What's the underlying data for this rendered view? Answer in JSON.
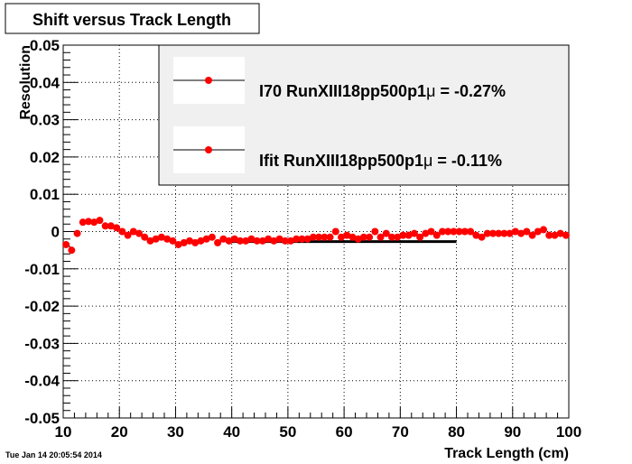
{
  "chart_data": {
    "type": "scatter",
    "title": "Shift versus Track Length",
    "xlabel": "Track Length (cm)",
    "ylabel": "Resolution",
    "xlim": [
      10,
      100
    ],
    "ylim": [
      -0.05,
      0.05
    ],
    "x_ticks": [
      "10",
      "20",
      "30",
      "40",
      "50",
      "60",
      "70",
      "80",
      "90",
      "100"
    ],
    "y_ticks": [
      "-0.05",
      "-0.04",
      "-0.03",
      "-0.02",
      "-0.01",
      "0",
      "0.01",
      "0.02",
      "0.03",
      "0.04",
      "0.05"
    ],
    "grid": true,
    "legend_position": "top-right",
    "timestamp": "Tue Jan 14 20:05:54 2014",
    "fit_line": {
      "x": [
        40,
        80
      ],
      "y": [
        -0.0027,
        -0.0027
      ],
      "color": "#000000"
    },
    "series": [
      {
        "name": "I70   RunXIII18pp500p1",
        "legend_suffix": " = -0.27%",
        "mu": "μ",
        "color": "#ff0000",
        "x": [
          10.5,
          11.5,
          12.5,
          13.5,
          14.5,
          15.5,
          16.5,
          17.5,
          18.5,
          19.5,
          20.5,
          21.5,
          22.5,
          23.5,
          24.5,
          25.5,
          26.5,
          27.5,
          28.5,
          29.5,
          30.5,
          31.5,
          32.5,
          33.5,
          34.5,
          35.5,
          36.5,
          37.5,
          38.5,
          39.5,
          40.5,
          41.5,
          42.5,
          43.5,
          44.5,
          45.5,
          46.5,
          47.5,
          48.5,
          49.5,
          50.5,
          51.5,
          52.5,
          53.5,
          54.5,
          55.5,
          56.5,
          57.5,
          58.5,
          59.5,
          60.5,
          61.5,
          62.5,
          63.5,
          64.5,
          65.5,
          66.5,
          67.5,
          68.5,
          69.5,
          70.5,
          71.5,
          72.5,
          73.5,
          74.5,
          75.5,
          76.5,
          77.5,
          78.5,
          79.5,
          80.5,
          81.5,
          82.5,
          83.5,
          84.5,
          85.5,
          86.5,
          87.5,
          88.5,
          89.5,
          90.5,
          91.5,
          92.5,
          93.5,
          94.5,
          95.5,
          96.5,
          97.5,
          98.5,
          99.5
        ],
        "y": [
          -0.0035,
          -0.005,
          -0.0005,
          0.0025,
          0.0027,
          0.0025,
          0.003,
          0.0015,
          0.0015,
          0.001,
          0.0,
          -0.001,
          0.0,
          -0.0005,
          -0.0015,
          -0.0025,
          -0.002,
          -0.0015,
          -0.002,
          -0.0025,
          -0.0035,
          -0.003,
          -0.0025,
          -0.003,
          -0.0025,
          -0.002,
          -0.0015,
          -0.003,
          -0.002,
          -0.0025,
          -0.002,
          -0.0025,
          -0.0025,
          -0.002,
          -0.0025,
          -0.0025,
          -0.002,
          -0.0025,
          -0.002,
          -0.0025,
          -0.0025,
          -0.002,
          -0.002,
          -0.002,
          -0.0015,
          -0.0015,
          -0.0015,
          -0.0015,
          0.0,
          -0.0015,
          -0.001,
          -0.0015,
          -0.002,
          -0.0015,
          -0.0015,
          0.0,
          -0.0015,
          -0.0005,
          -0.0015,
          -0.0015,
          -0.001,
          -0.001,
          -0.0005,
          -0.0015,
          -0.0005,
          0.0,
          -0.001,
          0.0,
          0.0,
          0.0,
          0.0,
          0.0,
          0.0,
          -0.001,
          -0.0015,
          -0.0005,
          -0.0005,
          -0.0005,
          -0.0005,
          -0.0005,
          0.0,
          -0.0005,
          0.0,
          -0.001,
          0.0,
          0.0005,
          -0.001,
          -0.001,
          -0.0005,
          -0.001
        ]
      },
      {
        "name": "Ifit  RunXIII18pp500p1",
        "legend_suffix": " = -0.11%",
        "mu": "μ",
        "color": "#ff0000",
        "x": [],
        "y": []
      }
    ]
  }
}
